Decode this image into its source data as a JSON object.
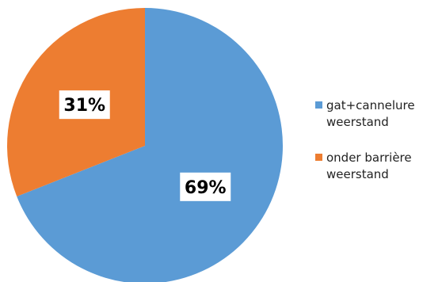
{
  "chart_data": {
    "type": "pie",
    "categories": [
      [
        "gat+cannelure",
        "weerstand"
      ],
      [
        "onder barrière",
        "weerstand"
      ]
    ],
    "values": [
      69,
      31
    ],
    "data_labels": [
      "69%",
      "31%"
    ],
    "colors": [
      "#5b9bd5",
      "#ed7d31"
    ],
    "start_angle_deg": 0,
    "direction": "clockwise",
    "legend_position": "right",
    "title": ""
  }
}
